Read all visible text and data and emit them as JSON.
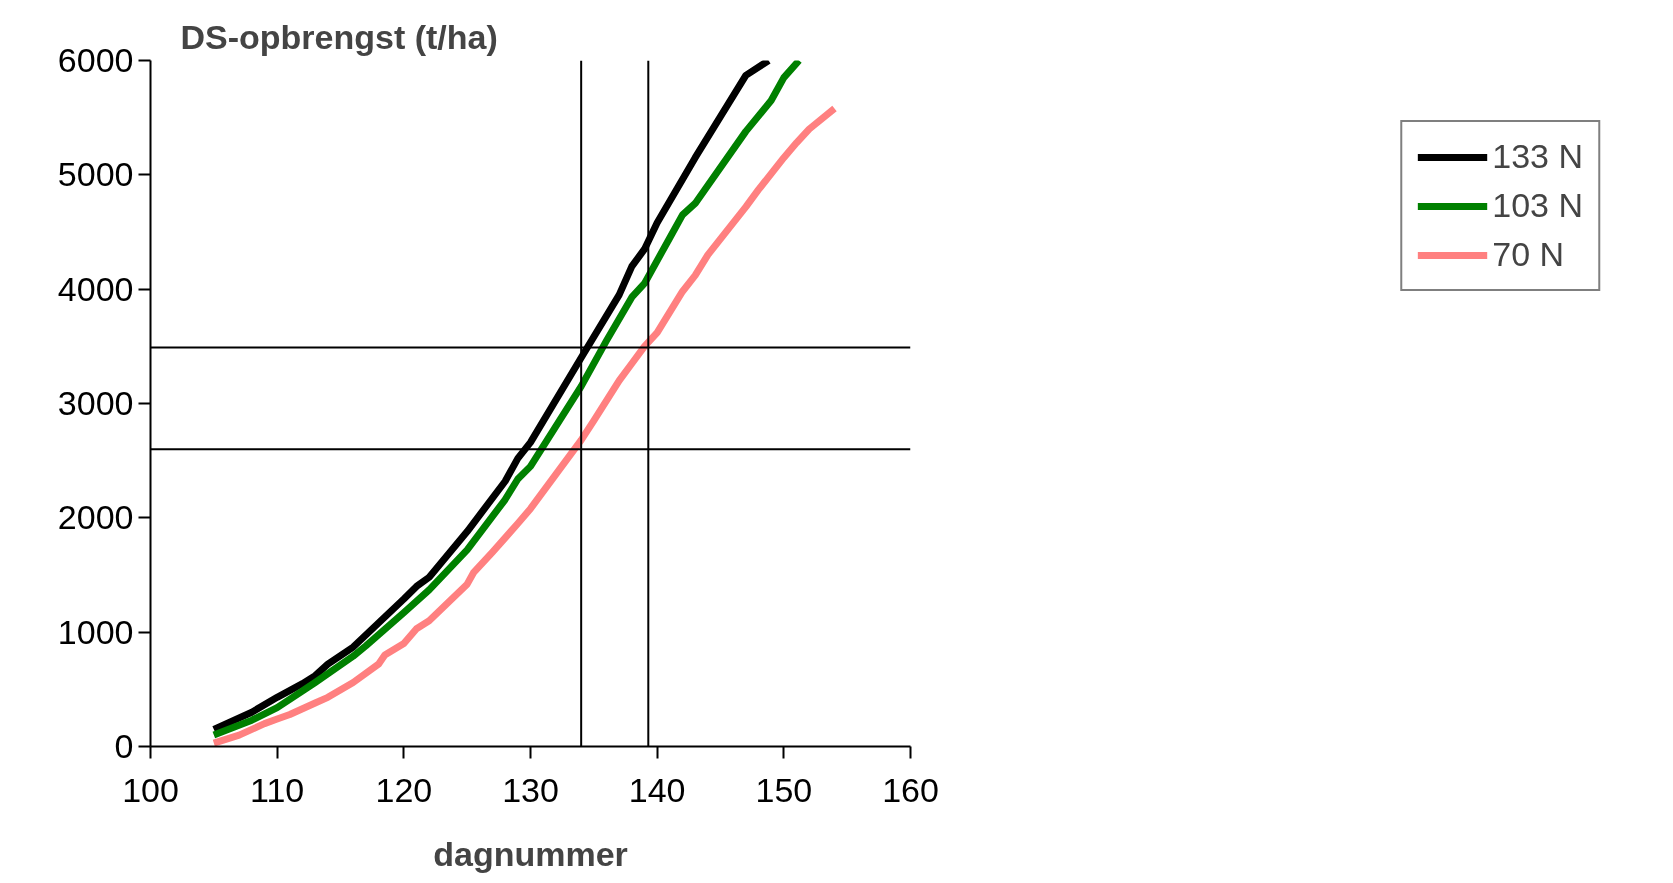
{
  "chart_data": {
    "type": "line",
    "ylabel": "DS-opbrengst (t/ha)",
    "xlabel": "dagnummer",
    "xlim": [
      100,
      160
    ],
    "ylim": [
      0,
      6000
    ],
    "xticks": [
      100,
      110,
      120,
      130,
      140,
      150,
      160
    ],
    "yticks": [
      0,
      1000,
      2000,
      3000,
      4000,
      5000,
      6000
    ],
    "grid": false,
    "legend": "right",
    "marker": "none",
    "line_style": "solid",
    "ref_lines": [
      {
        "axis": "x",
        "value": 134,
        "label": null
      },
      {
        "axis": "x",
        "value": 139.3,
        "label": null
      },
      {
        "axis": "y",
        "value": 3490,
        "label": null
      },
      {
        "axis": "y",
        "value": 2600,
        "label": null
      }
    ],
    "series": [
      {
        "name": "133 N",
        "color": "#000000",
        "x": [
          105,
          108,
          110,
          112,
          113,
          114,
          116,
          118,
          120,
          121,
          122,
          125,
          128,
          129,
          130,
          134,
          137,
          138,
          139,
          140,
          143,
          147,
          148.8
        ],
        "values": [
          150,
          300,
          430,
          550,
          620,
          720,
          870,
          1080,
          1290,
          1400,
          1480,
          1880,
          2320,
          2520,
          2660,
          3400,
          3950,
          4200,
          4350,
          4580,
          5150,
          5870,
          6000
        ]
      },
      {
        "name": "103 N",
        "color": "#008000",
        "x": [
          105,
          108,
          110,
          113,
          116,
          117,
          120,
          122,
          125,
          128,
          129,
          130,
          132,
          134,
          136,
          138,
          139,
          141,
          142,
          143,
          147,
          149,
          150,
          151.2
        ],
        "values": [
          100,
          230,
          340,
          560,
          790,
          880,
          1170,
          1370,
          1720,
          2160,
          2340,
          2450,
          2800,
          3150,
          3550,
          3930,
          4050,
          4450,
          4650,
          4750,
          5380,
          5650,
          5850,
          6000
        ]
      },
      {
        "name": "70 N",
        "color": "#ff8080",
        "x": [
          105,
          107,
          109,
          110,
          111,
          113,
          114,
          116,
          118,
          118.5,
          120,
          121,
          122,
          125,
          125.5,
          127,
          129,
          130,
          132,
          134,
          135,
          137,
          138,
          139,
          140,
          142,
          143,
          144,
          147,
          148,
          150,
          151,
          152,
          154
        ],
        "values": [
          30,
          100,
          200,
          240,
          280,
          380,
          430,
          560,
          720,
          800,
          900,
          1030,
          1100,
          1420,
          1520,
          1700,
          1950,
          2080,
          2380,
          2680,
          2850,
          3200,
          3350,
          3500,
          3620,
          3980,
          4120,
          4300,
          4720,
          4870,
          5150,
          5280,
          5400,
          5580
        ]
      }
    ]
  }
}
